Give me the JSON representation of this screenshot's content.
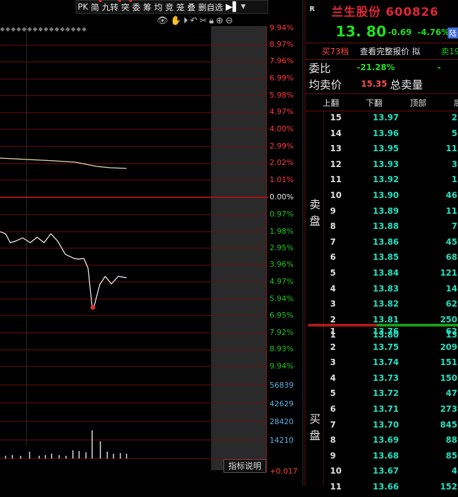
{
  "toolbar": {
    "buttons": [
      "PK",
      "简",
      "九转",
      "突",
      "委",
      "筹",
      "均",
      "竞",
      "笼",
      "叠",
      "删自选"
    ],
    "arrow": "▶▌",
    "caret": "▼"
  },
  "chart_icons": [
    "eye-icon",
    "hand-icon",
    "play-icon",
    "undo-icon",
    "scissors-icon",
    "lock-icon",
    "zoom-in-icon",
    "zoom-out-icon"
  ],
  "pct_axis": {
    "up": [
      "9.94%",
      "8.97%",
      "7.96%",
      "6.99%",
      "5.98%",
      "4.97%",
      "4.00%",
      "2.99%",
      "2.02%",
      "1.01%"
    ],
    "zero": "0.00%",
    "down": [
      "0.97%",
      "1.98%",
      "2.95%",
      "3.96%",
      "4.97%",
      "5.94%",
      "6.95%",
      "7.92%",
      "8.93%",
      "9.94%"
    ]
  },
  "volume_axis": [
    "56839",
    "42629",
    "28420",
    "14210"
  ],
  "volume_bottom": "+0.017",
  "help_button": "指标说明",
  "stock": {
    "icon": "R",
    "name": "兰生股份",
    "code": "600826",
    "price": "13. 80",
    "change": "-0.69",
    "change_pct": "-4.76%",
    "badge": "陆"
  },
  "tabs": {
    "buy": "买73档",
    "view": "查看完整报价",
    "mode": "拟",
    "sell": "卖19"
  },
  "stats": {
    "ratio_label": "委比",
    "ratio_value": "-21.28%",
    "ratio_tail": "-",
    "avg_label": "均卖价",
    "avg_value": "15.35",
    "total_label": "总卖量"
  },
  "columns": {
    "up": "上翻",
    "down": "下翻",
    "top": "顶部",
    "bottom": "底"
  },
  "sell_label": "卖盘",
  "buy_label": "买盘",
  "sell_orders": [
    {
      "idx": "15",
      "price": "13.97",
      "vol": "2"
    },
    {
      "idx": "14",
      "price": "13.96",
      "vol": "5"
    },
    {
      "idx": "13",
      "price": "13.95",
      "vol": "11"
    },
    {
      "idx": "12",
      "price": "13.93",
      "vol": "3"
    },
    {
      "idx": "11",
      "price": "13.92",
      "vol": "1"
    },
    {
      "idx": "10",
      "price": "13.90",
      "vol": "46"
    },
    {
      "idx": "9",
      "price": "13.89",
      "vol": "11"
    },
    {
      "idx": "8",
      "price": "13.88",
      "vol": "7"
    },
    {
      "idx": "7",
      "price": "13.86",
      "vol": "45"
    },
    {
      "idx": "6",
      "price": "13.85",
      "vol": "68"
    },
    {
      "idx": "5",
      "price": "13.84",
      "vol": "121"
    },
    {
      "idx": "4",
      "price": "13.83",
      "vol": "14"
    },
    {
      "idx": "3",
      "price": "13.82",
      "vol": "62"
    },
    {
      "idx": "2",
      "price": "13.81",
      "vol": "250"
    },
    {
      "idx": "1",
      "price": "13.80",
      "vol": "13"
    }
  ],
  "buy_orders": [
    {
      "idx": "1",
      "price": "13.76",
      "vol": "62"
    },
    {
      "idx": "2",
      "price": "13.75",
      "vol": "209"
    },
    {
      "idx": "3",
      "price": "13.74",
      "vol": "151"
    },
    {
      "idx": "4",
      "price": "13.73",
      "vol": "150"
    },
    {
      "idx": "5",
      "price": "13.72",
      "vol": "47"
    },
    {
      "idx": "6",
      "price": "13.71",
      "vol": "273"
    },
    {
      "idx": "7",
      "price": "13.70",
      "vol": "845"
    },
    {
      "idx": "8",
      "price": "13.69",
      "vol": "88"
    },
    {
      "idx": "9",
      "price": "13.68",
      "vol": "85"
    },
    {
      "idx": "10",
      "price": "13.67",
      "vol": "4"
    },
    {
      "idx": "11",
      "price": "13.66",
      "vol": "152"
    }
  ],
  "colors": {
    "up": "#ff3b3b",
    "down": "#22c922",
    "grid": "#6b1010",
    "price_line": "#ffffff",
    "avg_line": "#e6e0b0",
    "volume_axis": "#5ab2e8"
  }
}
